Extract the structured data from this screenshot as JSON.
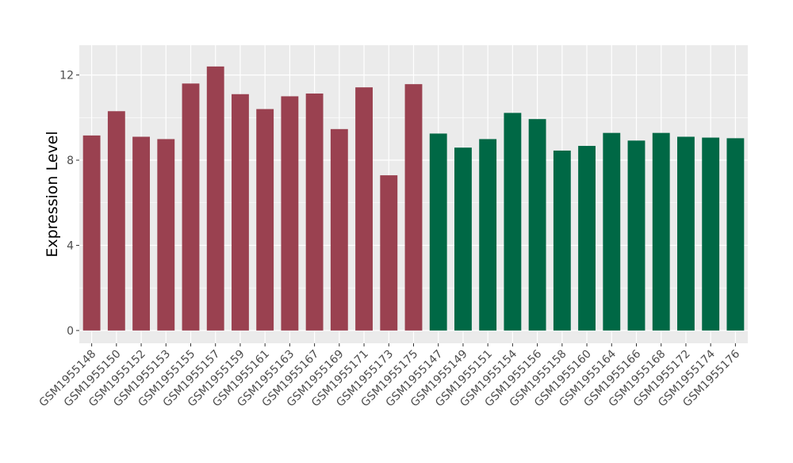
{
  "chart_data": {
    "type": "bar",
    "title": "",
    "xlabel": "",
    "ylabel": "Expression Level",
    "ylim": [
      -0.6,
      13.4
    ],
    "yticks": [
      0,
      4,
      8,
      12
    ],
    "grid": true,
    "legend": "none",
    "colors": {
      "group1": "#9A4150",
      "group2": "#006845",
      "panel": "#EBEBEB",
      "grid": "#FFFFFF"
    },
    "categories": [
      "GSM1955148",
      "GSM1955150",
      "GSM1955152",
      "GSM1955153",
      "GSM1955155",
      "GSM1955157",
      "GSM1955159",
      "GSM1955161",
      "GSM1955163",
      "GSM1955167",
      "GSM1955169",
      "GSM1955171",
      "GSM1955173",
      "GSM1955175",
      "GSM1955147",
      "GSM1955149",
      "GSM1955151",
      "GSM1955154",
      "GSM1955156",
      "GSM1955158",
      "GSM1955160",
      "GSM1955164",
      "GSM1955166",
      "GSM1955168",
      "GSM1955172",
      "GSM1955174",
      "GSM1955176"
    ],
    "values": [
      9.16,
      10.3,
      9.1,
      8.99,
      11.6,
      12.4,
      11.1,
      10.4,
      11.0,
      11.13,
      9.46,
      11.42,
      7.29,
      11.57,
      9.25,
      8.59,
      8.99,
      10.22,
      9.93,
      8.45,
      8.67,
      9.28,
      8.92,
      9.28,
      9.1,
      9.06,
      9.03
    ],
    "groups": [
      1,
      1,
      1,
      1,
      1,
      1,
      1,
      1,
      1,
      1,
      1,
      1,
      1,
      1,
      2,
      2,
      2,
      2,
      2,
      2,
      2,
      2,
      2,
      2,
      2,
      2,
      2
    ]
  }
}
